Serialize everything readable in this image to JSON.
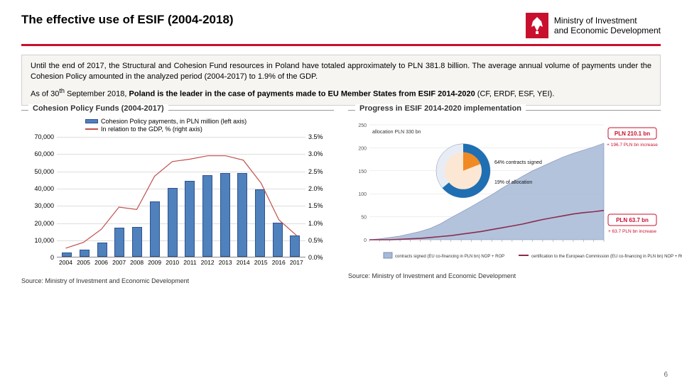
{
  "header": {
    "title": "The effective use of ESIF (2004-2018)",
    "ministry_line1": "Ministry of Investment",
    "ministry_line2": "and Economic Development"
  },
  "infobox": {
    "p1": "Until the end of 2017, the Structural and Cohesion Fund resources in Poland have totaled approximately to PLN 381.8 billion. The average annual volume of payments under the Cohesion Policy amounted in the analyzed period (2004-2017) to 1.9% of the GDP.",
    "p2_prefix": "As of 30",
    "p2_sup": "th",
    "p2_mid": " September 2018, ",
    "p2_bold": "Poland is the leader in the case of payments made to EU Member States from ESIF 2014-2020",
    "p2_suffix": " (CF, ERDF, ESF, YEI)."
  },
  "left_chart": {
    "title": "Cohesion Policy Funds (2004-2017)",
    "legend_bar": "Cohesion Policy payments, in PLN million (left axis)",
    "legend_line": "In relation to the GDP, % (right axis)",
    "type": "bar+line-dual-axis",
    "categories": [
      "2004",
      "2005",
      "2006",
      "2007",
      "2008",
      "2009",
      "2010",
      "2011",
      "2012",
      "2013",
      "2014",
      "2015",
      "2016",
      "2017"
    ],
    "bar_values": [
      2500,
      4200,
      8500,
      17000,
      17500,
      32000,
      40000,
      44000,
      47500,
      48500,
      48500,
      39000,
      20000,
      12500
    ],
    "line_values_pct": [
      0.25,
      0.42,
      0.8,
      1.45,
      1.38,
      2.35,
      2.78,
      2.85,
      2.95,
      2.95,
      2.82,
      2.15,
      1.08,
      0.62
    ],
    "y_left": {
      "min": 0,
      "max": 70000,
      "step": 10000,
      "ticks": [
        "0",
        "10,000",
        "20,000",
        "30,000",
        "40,000",
        "50,000",
        "60,000",
        "70,000"
      ]
    },
    "y_right": {
      "min": 0,
      "max": 3.5,
      "step": 0.5,
      "ticks": [
        "0.0%",
        "0.5%",
        "1.0%",
        "1.5%",
        "2.0%",
        "2.5%",
        "3.0%",
        "3.5%"
      ]
    },
    "colors": {
      "bar": "#4f81bd",
      "bar_border": "#2f528f",
      "line": "#c0504d",
      "grid": "#dddddd",
      "axis": "#888888"
    },
    "source": "Source: Ministry of Investment and Economic Development"
  },
  "right_chart": {
    "title": "Progress in ESIF 2014-2020 implementation",
    "type": "area-line-with-callouts",
    "legend_items": [
      "contracts signed (EU co-financing in PLN bn) NOP + ROP",
      "certification to the European Commission (EU co-financing in PLN bn) NOP + ROP"
    ],
    "allocation_label": "allocation PLN 330 bn",
    "donut": {
      "outer_pct": 64,
      "outer_label": "64% contracts signed",
      "outer_color": "#1f6fb2",
      "inner_pct": 19,
      "inner_label": "19% of allocation",
      "inner_color": "#f08a24"
    },
    "callouts": {
      "contracts_value": "PLN 210.1 bn",
      "contracts_delta": "+ 196.7 PLN bn increase",
      "cert_value": "PLN 63.7 bn",
      "cert_delta": "+ 63.7 PLN bn increase"
    },
    "y_axis": {
      "min": 0,
      "max": 250,
      "ticks": [
        0,
        50,
        100,
        150,
        200,
        250
      ]
    },
    "series": {
      "contracts": [
        0,
        2,
        5,
        8,
        13,
        18,
        25,
        35,
        48,
        60,
        72,
        85,
        98,
        112,
        125,
        138,
        150,
        160,
        170,
        180,
        188,
        195,
        202,
        210
      ],
      "certification": [
        0,
        0,
        0,
        1,
        2,
        3,
        5,
        7,
        9,
        12,
        15,
        18,
        22,
        26,
        30,
        34,
        39,
        44,
        48,
        52,
        56,
        59,
        61,
        63.7
      ]
    },
    "colors": {
      "contracts": "#a6b9d6",
      "certification": "#8b2c4f",
      "callout_red": "#c8102e",
      "grid": "#dddddd"
    },
    "source": "Source: Ministry of Investment and Economic Development"
  },
  "page_number": "6"
}
